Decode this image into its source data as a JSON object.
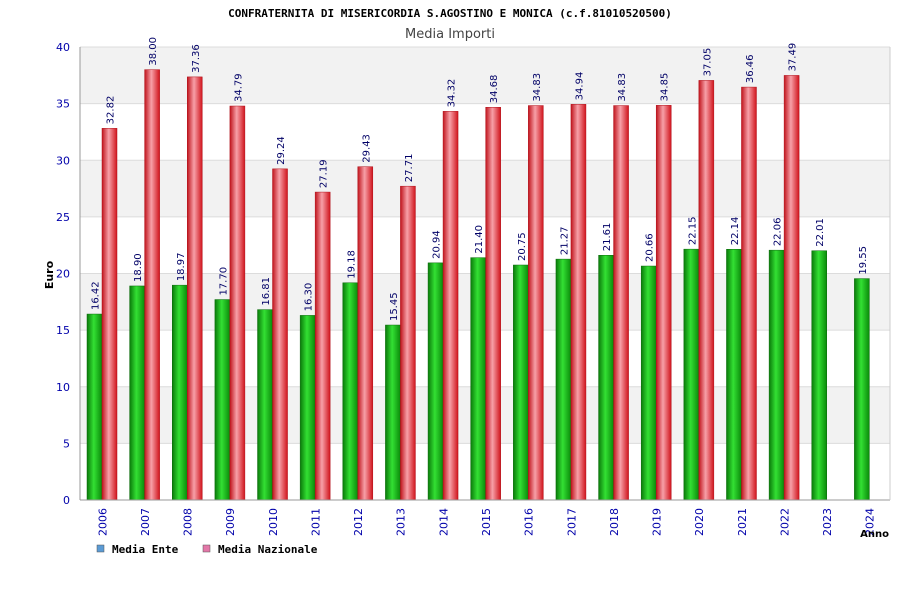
{
  "chart_data": {
    "type": "bar",
    "title": "CONFRATERNITA DI MISERICORDIA S.AGOSTINO E MONICA (c.f.81010520500)",
    "subtitle": "Media Importi",
    "xlabel": "Anno",
    "ylabel": "Euro",
    "ylim": [
      0,
      40
    ],
    "yticks": [
      0,
      5,
      10,
      15,
      20,
      25,
      30,
      35,
      40
    ],
    "grid": true,
    "legend_position": "bottom-left",
    "categories": [
      "2006",
      "2007",
      "2008",
      "2009",
      "2010",
      "2011",
      "2012",
      "2013",
      "2014",
      "2015",
      "2016",
      "2017",
      "2018",
      "2019",
      "2020",
      "2021",
      "2022",
      "2023",
      "2024"
    ],
    "series": [
      {
        "name": "Media Ente",
        "color": "#1fae1f",
        "legend_color": "#5b9bd5",
        "values": [
          16.42,
          18.9,
          18.97,
          17.7,
          16.81,
          16.3,
          19.18,
          15.45,
          20.94,
          21.4,
          20.75,
          21.27,
          21.61,
          20.66,
          22.15,
          22.14,
          22.06,
          22.01,
          19.55
        ],
        "labels": [
          "16.42",
          "18.90",
          "18.97",
          "17.70",
          "16.81",
          "16.30",
          "19.18",
          "15.45",
          "20.94",
          "21.40",
          "20.75",
          "21.27",
          "21.61",
          "20.66",
          "22.15",
          "22.14",
          "22.06",
          "22.01",
          "19.55"
        ]
      },
      {
        "name": "Media Nazionale",
        "color": "#e8262f",
        "legend_color": "#e377a8",
        "values": [
          32.82,
          38.0,
          37.36,
          34.79,
          29.24,
          27.19,
          29.43,
          27.71,
          34.32,
          34.68,
          34.83,
          34.94,
          34.83,
          34.85,
          37.05,
          36.46,
          37.49,
          null,
          null
        ],
        "labels": [
          "32.82",
          "38.00",
          "37.36",
          "34.79",
          "29.24",
          "27.19",
          "29.43",
          "27.71",
          "34.32",
          "34.68",
          "34.83",
          "34.94",
          "34.83",
          "34.85",
          "37.05",
          "36.46",
          "37.49",
          null,
          null
        ]
      }
    ]
  }
}
